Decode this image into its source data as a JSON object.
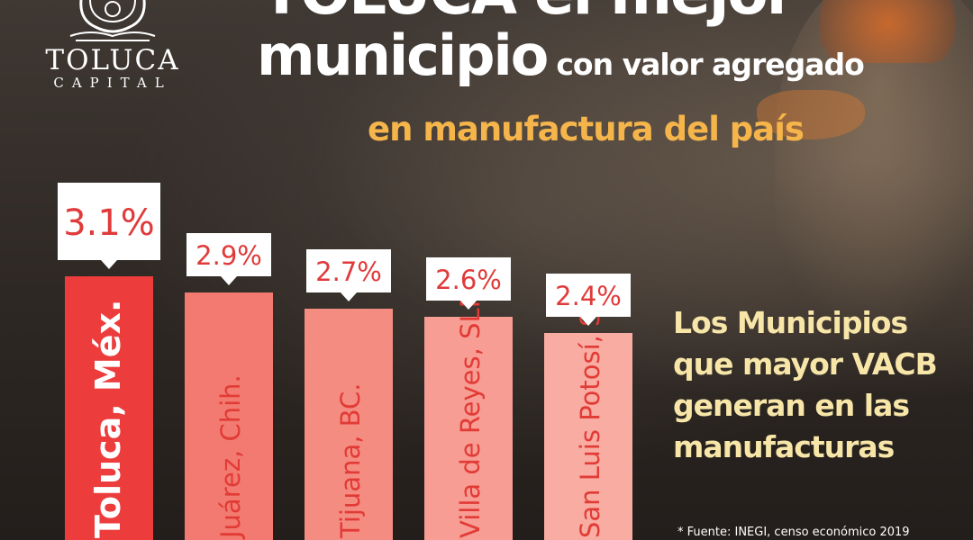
{
  "brand": {
    "name": "TOLUCA",
    "subtitle": "CAPITAL"
  },
  "header": {
    "line1": "TOLUCA el mejor",
    "line2_big": "municipio",
    "line2_small": "con valor agregado",
    "line3": "en manufactura del país"
  },
  "side_text": "Los Municipios que mayor VACB generan en las manufacturas",
  "footnote": "* Fuente: INEGI, censo económico 2019",
  "colors": {
    "highlight_bar": "#ec3c3c",
    "bars": [
      "#ec3c3c",
      "#f27a70",
      "#f48c82",
      "#f79d94",
      "#f8aca2"
    ],
    "label_text": "#e03a3a",
    "title_accent": "#f5b54a",
    "side_text": "#f7e6a8"
  },
  "chart_data": {
    "type": "bar",
    "categories": [
      "Toluca, Méx.",
      "Juárez, Chih.",
      "Tijuana, BC.",
      "Villa de Reyes, SLP.",
      "San Luis Potosí, SLP."
    ],
    "values": [
      3.1,
      2.9,
      2.7,
      2.6,
      2.4
    ],
    "value_labels": [
      "3.1%",
      "2.9%",
      "2.7%",
      "2.6%",
      "2.4%"
    ],
    "unit": "%",
    "title": "",
    "xlabel": "",
    "ylabel": "",
    "ylim": [
      0,
      3.1
    ],
    "grid": false,
    "legend": "none"
  }
}
